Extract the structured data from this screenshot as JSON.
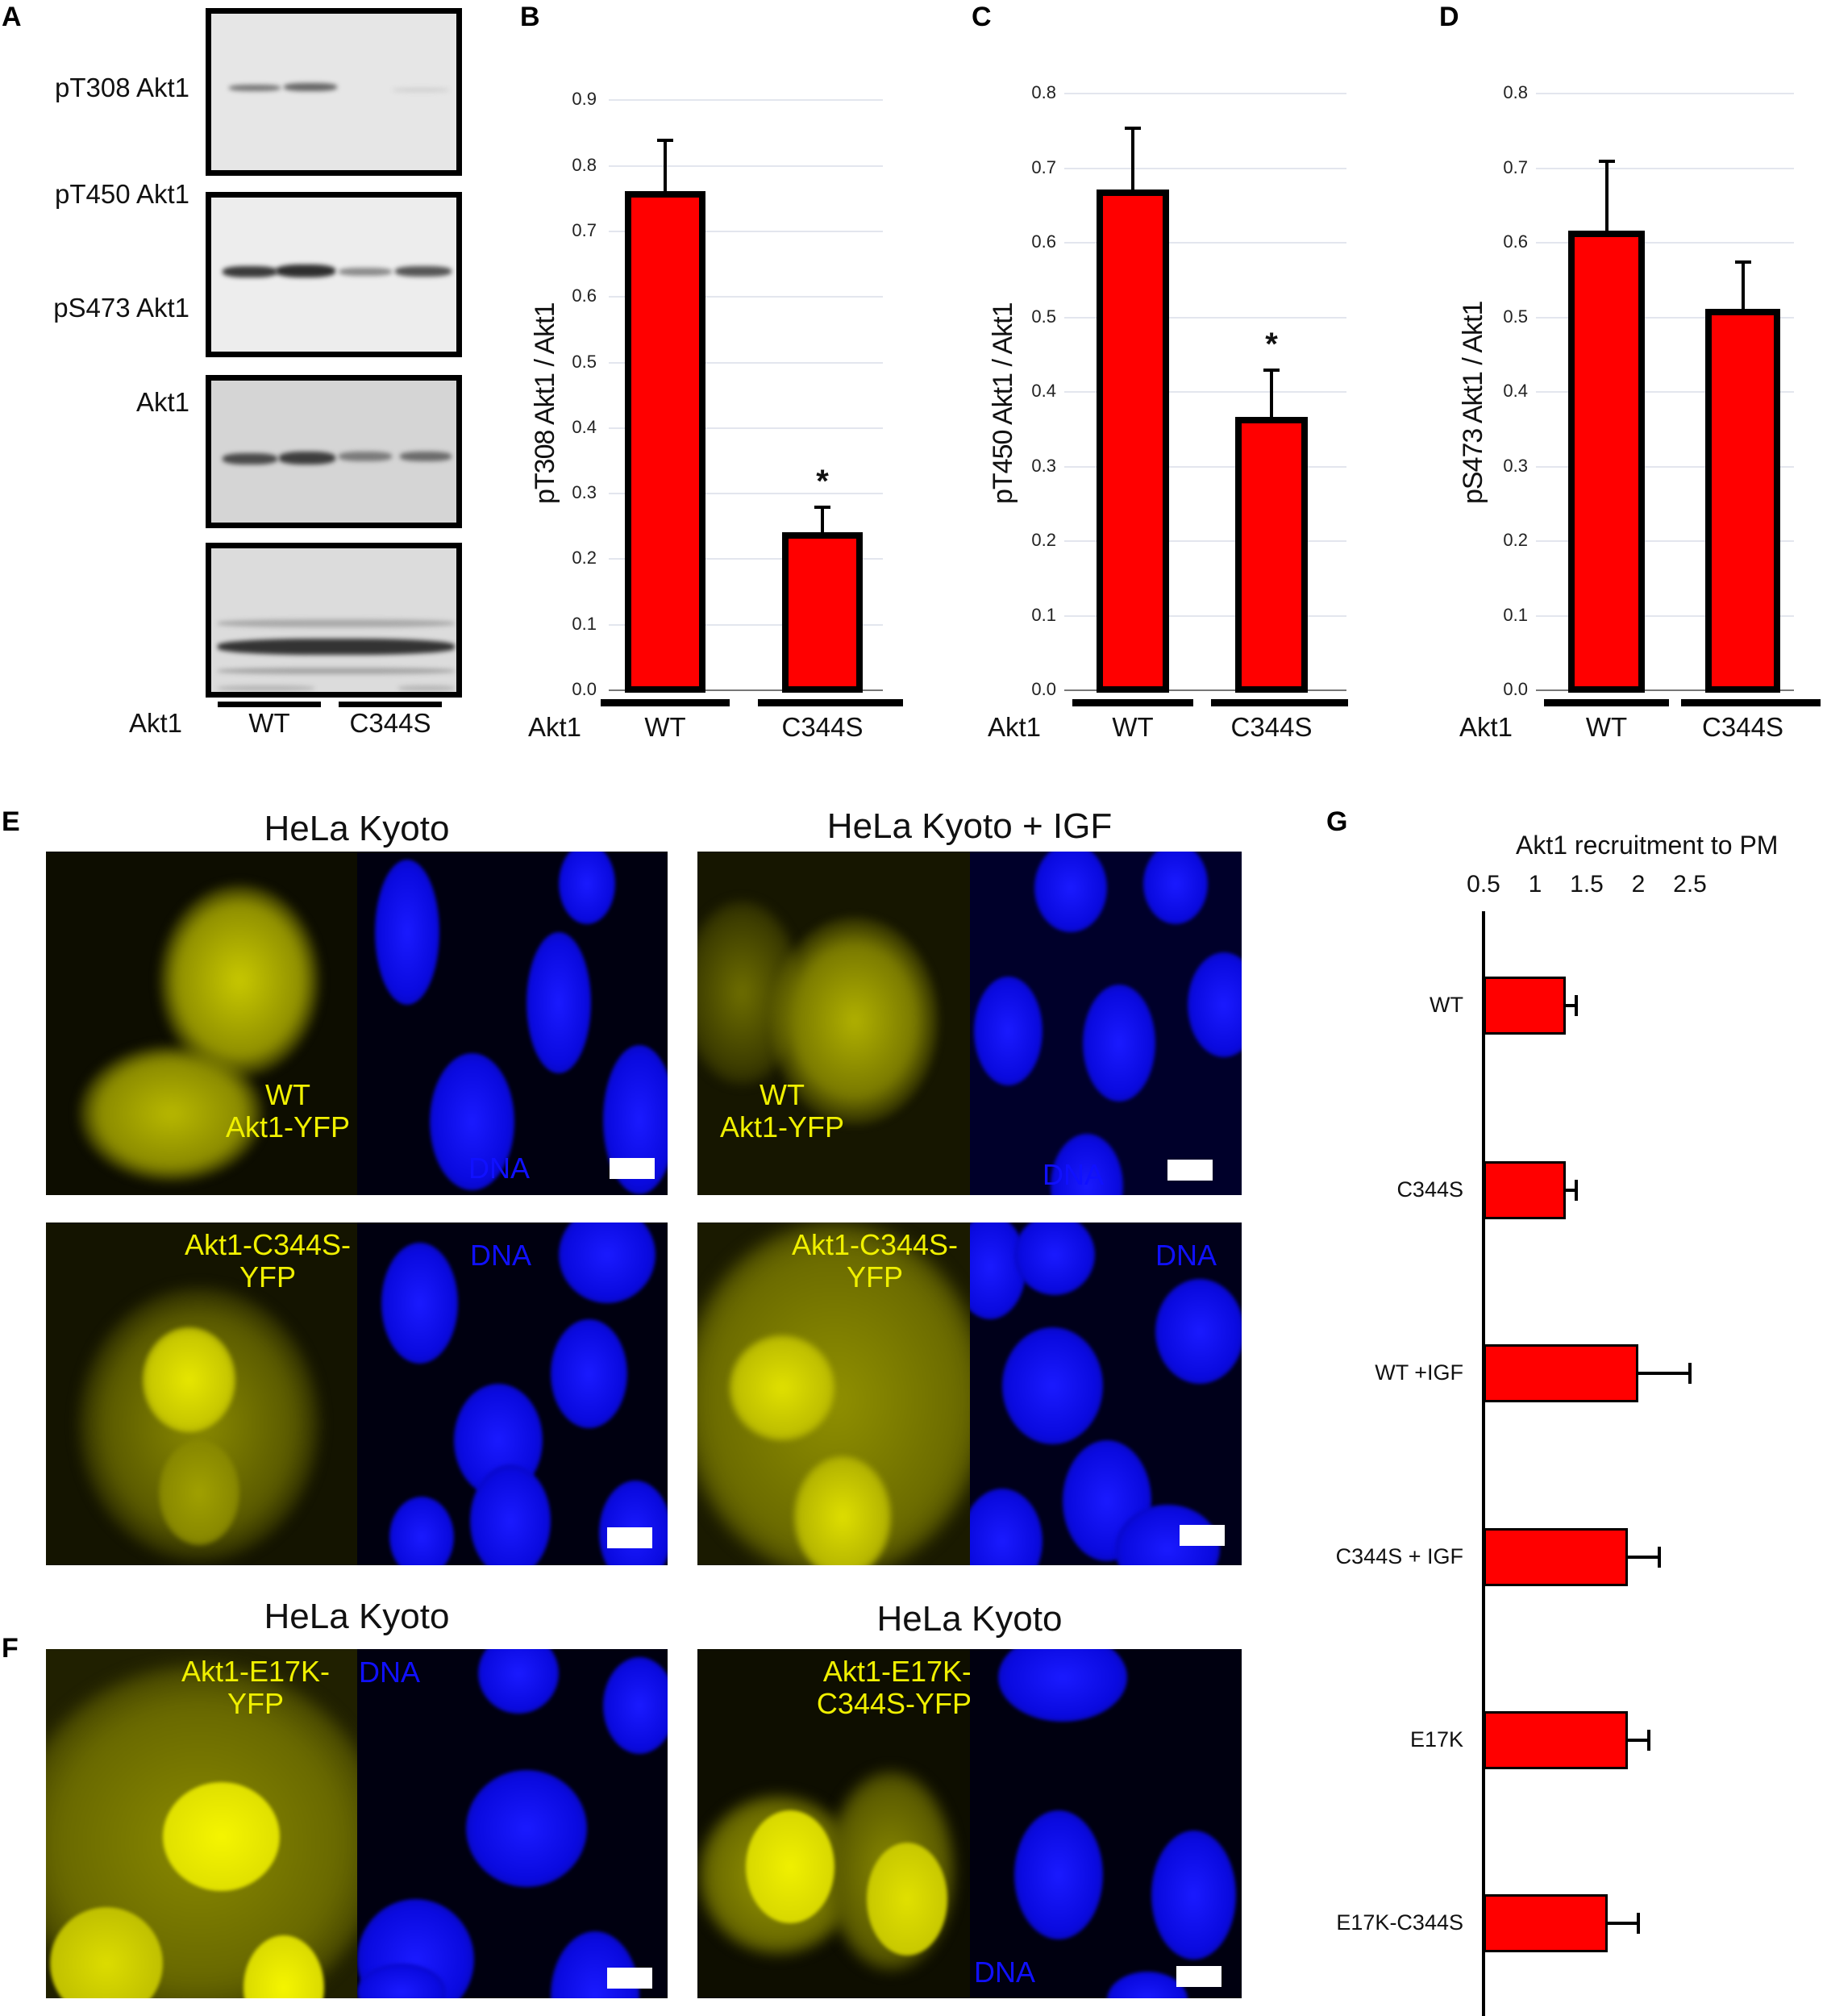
{
  "panels": {
    "A": {
      "letter": "A",
      "blots": [
        {
          "label": "pT308 Akt1"
        },
        {
          "label": "pT450 Akt1"
        },
        {
          "label": "pS473 Akt1"
        },
        {
          "label": "Akt1"
        }
      ],
      "row_label": "Akt1",
      "groups": [
        "WT",
        "C344S"
      ]
    },
    "B": {
      "letter": "B"
    },
    "C": {
      "letter": "C"
    },
    "D": {
      "letter": "D"
    },
    "E": {
      "letter": "E",
      "titles": [
        "HeLa Kyoto",
        "HeLa Kyoto + IGF"
      ],
      "images": [
        {
          "yfp_label_1": "WT",
          "yfp_label_2": "Akt1-YFP",
          "dna_label": "DNA"
        },
        {
          "yfp_label_1": "WT",
          "yfp_label_2": "Akt1-YFP",
          "dna_label": "DNA"
        },
        {
          "yfp_label_1": "Akt1-C344S-",
          "yfp_label_2": "YFP",
          "dna_label": "DNA"
        },
        {
          "yfp_label_1": "Akt1-C344S-",
          "yfp_label_2": "YFP",
          "dna_label": "DNA"
        }
      ]
    },
    "F": {
      "letter": "F",
      "titles": [
        "HeLa Kyoto",
        "HeLa Kyoto"
      ],
      "images": [
        {
          "yfp_label_1": "Akt1-E17K-",
          "yfp_label_2": "YFP",
          "dna_label": "DNA"
        },
        {
          "yfp_label_1": "Akt1-E17K-",
          "yfp_label_2": "C344S-YFP",
          "dna_label": "DNA"
        }
      ]
    },
    "G": {
      "letter": "G"
    }
  },
  "colors": {
    "bar_fill": "#ff0000",
    "bar_edge": "#000000",
    "yfp": "#f0f000",
    "dna": "#1010ff",
    "grid": "#e3e6ee"
  },
  "chart_data": [
    {
      "panel": "B",
      "type": "bar",
      "title": "",
      "xlabel": "Akt1",
      "ylabel": "pT308 Akt1 / Akt1",
      "categories": [
        "WT",
        "C344S"
      ],
      "values": [
        0.76,
        0.24
      ],
      "errors": [
        0.08,
        0.04
      ],
      "significance": [
        "",
        "*"
      ],
      "yticks": [
        "0.0",
        "0.1",
        "0.2",
        "0.3",
        "0.4",
        "0.5",
        "0.6",
        "0.7",
        "0.8",
        "0.9"
      ],
      "ylim": [
        0,
        0.9
      ],
      "grid": true
    },
    {
      "panel": "C",
      "type": "bar",
      "title": "",
      "xlabel": "Akt1",
      "ylabel": "pT450 Akt1 / Akt1",
      "categories": [
        "WT",
        "C344S"
      ],
      "values": [
        0.67,
        0.365
      ],
      "errors": [
        0.085,
        0.065
      ],
      "significance": [
        "",
        "*"
      ],
      "yticks": [
        "0.0",
        "0.1",
        "0.2",
        "0.3",
        "0.4",
        "0.5",
        "0.6",
        "0.7",
        "0.8"
      ],
      "ylim": [
        0,
        0.8
      ],
      "grid": true
    },
    {
      "panel": "D",
      "type": "bar",
      "title": "",
      "xlabel": "Akt1",
      "ylabel": "pS473 Akt1 / Akt1",
      "categories": [
        "WT",
        "C344S"
      ],
      "values": [
        0.615,
        0.51
      ],
      "errors": [
        0.095,
        0.065
      ],
      "significance": [
        "",
        ""
      ],
      "yticks": [
        "0.0",
        "0.1",
        "0.2",
        "0.3",
        "0.4",
        "0.5",
        "0.6",
        "0.7",
        "0.8"
      ],
      "ylim": [
        0,
        0.8
      ],
      "grid": true
    },
    {
      "panel": "G",
      "type": "bar",
      "orientation": "horizontal",
      "title": "Akt1  recruitment to PM",
      "xlabel": "",
      "ylabel": "",
      "categories": [
        "WT",
        "C344S",
        "WT +IGF",
        "C344S + IGF",
        "E17K",
        "E17K-C344S"
      ],
      "values": [
        1.3,
        1.3,
        2.0,
        1.9,
        1.9,
        1.7
      ],
      "errors": [
        0.1,
        0.1,
        0.5,
        0.3,
        0.2,
        0.3
      ],
      "xticks": [
        "0.5",
        "1",
        "1.5",
        "2",
        "2.5"
      ],
      "xlim": [
        0.5,
        2.5
      ],
      "axis_position": "top",
      "grid": false
    }
  ]
}
